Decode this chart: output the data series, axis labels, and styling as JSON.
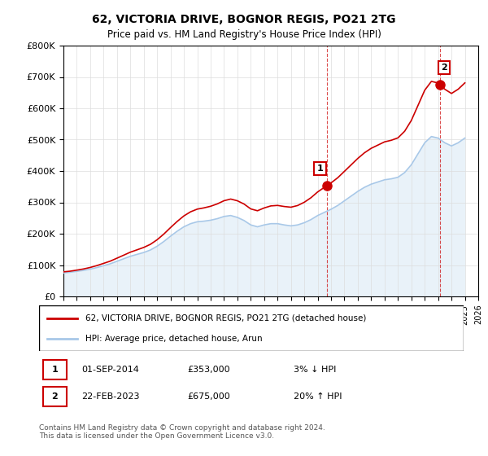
{
  "title": "62, VICTORIA DRIVE, BOGNOR REGIS, PO21 2TG",
  "subtitle": "Price paid vs. HM Land Registry's House Price Index (HPI)",
  "ylim": [
    0,
    800000
  ],
  "yticks": [
    0,
    100000,
    200000,
    300000,
    400000,
    500000,
    600000,
    700000,
    800000
  ],
  "ytick_labels": [
    "£0",
    "£100K",
    "£200K",
    "£300K",
    "£400K",
    "£500K",
    "£600K",
    "£700K",
    "£800K"
  ],
  "xlim": [
    1995,
    2026
  ],
  "xticks": [
    1995,
    1996,
    1997,
    1998,
    1999,
    2000,
    2001,
    2002,
    2003,
    2004,
    2005,
    2006,
    2007,
    2008,
    2009,
    2010,
    2011,
    2012,
    2013,
    2014,
    2015,
    2016,
    2017,
    2018,
    2019,
    2020,
    2021,
    2022,
    2023,
    2024,
    2025,
    2026
  ],
  "hpi_years": [
    1995,
    1995.5,
    1996,
    1996.5,
    1997,
    1997.5,
    1998,
    1998.5,
    1999,
    1999.5,
    2000,
    2000.5,
    2001,
    2001.5,
    2002,
    2002.5,
    2003,
    2003.5,
    2004,
    2004.5,
    2005,
    2005.5,
    2006,
    2006.5,
    2007,
    2007.5,
    2008,
    2008.5,
    2009,
    2009.5,
    2010,
    2010.5,
    2011,
    2011.5,
    2012,
    2012.5,
    2013,
    2013.5,
    2014,
    2014.5,
    2015,
    2015.5,
    2016,
    2016.5,
    2017,
    2017.5,
    2018,
    2018.5,
    2019,
    2019.5,
    2020,
    2020.5,
    2021,
    2021.5,
    2022,
    2022.5,
    2023,
    2023.5,
    2024,
    2024.5,
    2025
  ],
  "hpi_values": [
    75000,
    77000,
    80000,
    83000,
    87000,
    92000,
    98000,
    104000,
    112000,
    120000,
    128000,
    134000,
    140000,
    148000,
    160000,
    175000,
    192000,
    208000,
    222000,
    232000,
    238000,
    240000,
    243000,
    248000,
    255000,
    258000,
    252000,
    242000,
    228000,
    222000,
    228000,
    232000,
    232000,
    228000,
    225000,
    228000,
    235000,
    245000,
    258000,
    268000,
    278000,
    290000,
    305000,
    320000,
    335000,
    348000,
    358000,
    365000,
    372000,
    375000,
    380000,
    395000,
    420000,
    455000,
    490000,
    510000,
    505000,
    490000,
    480000,
    490000,
    505000
  ],
  "price_years": [
    1995.75,
    2014.67,
    2023.15
  ],
  "price_values": [
    82000,
    353000,
    675000
  ],
  "marker1_year": 2014.67,
  "marker1_value": 353000,
  "marker1_label": "1",
  "marker2_year": 2023.15,
  "marker2_value": 675000,
  "marker2_label": "2",
  "sale1_vline_year": 2014.67,
  "sale2_vline_year": 2023.15,
  "legend_line1": "62, VICTORIA DRIVE, BOGNOR REGIS, PO21 2TG (detached house)",
  "legend_line2": "HPI: Average price, detached house, Arun",
  "table_rows": [
    {
      "num": "1",
      "date": "01-SEP-2014",
      "price": "£353,000",
      "hpi": "3% ↓ HPI"
    },
    {
      "num": "2",
      "date": "22-FEB-2023",
      "price": "£675,000",
      "hpi": "20% ↑ HPI"
    }
  ],
  "footnote": "Contains HM Land Registry data © Crown copyright and database right 2024.\nThis data is licensed under the Open Government Licence v3.0.",
  "hpi_color": "#a8c8e8",
  "price_color": "#cc0000",
  "vline_color": "#cc0000",
  "fill_color": "#c8dff0",
  "grid_color": "#dddddd",
  "background_color": "#ffffff"
}
